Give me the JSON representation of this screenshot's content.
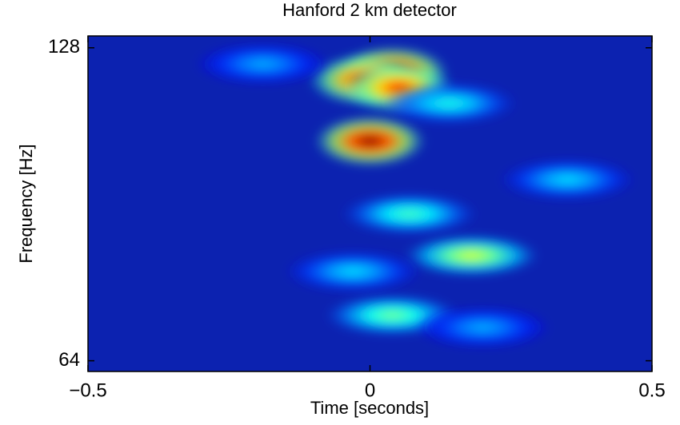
{
  "chart_data": {
    "type": "heatmap",
    "title": "Hanford 2 km detector",
    "x_label": "Time [seconds]",
    "y_label": "Frequency [Hz]",
    "x": [
      0.04,
      -0.01,
      0.05,
      0.0,
      0.14,
      -0.19,
      0.07,
      0.18,
      -0.03,
      0.35,
      0.04,
      0.2
    ],
    "y": [
      121.4,
      119.2,
      117.2,
      104.1,
      113.2,
      123.5,
      88.6,
      80.8,
      78.0,
      95.6,
      70.8,
      68.9
    ],
    "values": [
      1.0,
      0.9,
      0.85,
      1.0,
      0.4,
      0.3,
      0.45,
      0.6,
      0.35,
      0.35,
      0.5,
      0.3
    ],
    "background": "#0c22b0",
    "xlim": [
      -0.5,
      0.5
    ],
    "xticks": [
      {
        "value": -0.5,
        "label": "−0.5"
      },
      0,
      0.5
    ],
    "ylim": [
      62.5,
      131.4
    ],
    "yticks": [
      64,
      128
    ],
    "y_log": true
  }
}
